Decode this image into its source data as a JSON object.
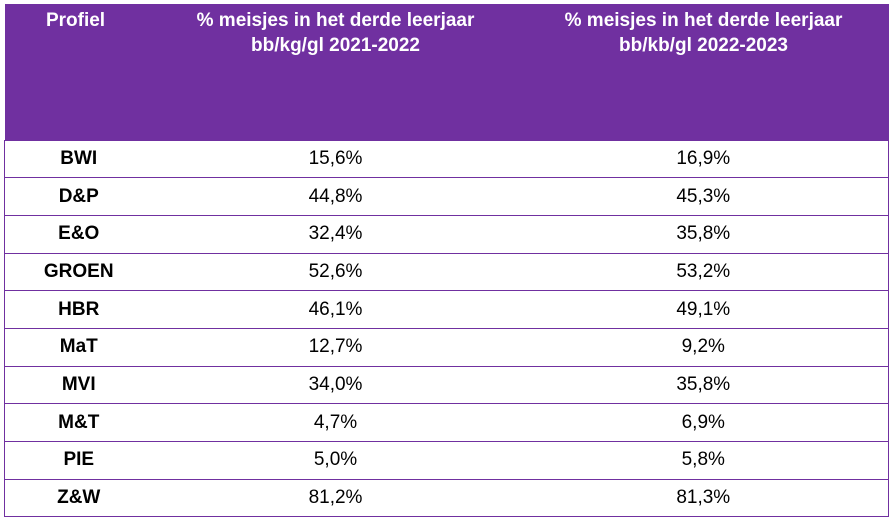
{
  "table": {
    "headers": [
      {
        "lines": [
          "Profiel"
        ]
      },
      {
        "lines": [
          "% meisjes in het derde leerjaar",
          "bb/kg/gl  2021-2022"
        ]
      },
      {
        "lines": [
          "% meisjes in het derde leerjaar",
          "bb/kb/gl 2022-2023"
        ]
      }
    ],
    "rows": [
      {
        "profiel": "BWI",
        "y2021": "15,6%",
        "y2022": "16,9%"
      },
      {
        "profiel": "D&P",
        "y2021": "44,8%",
        "y2022": "45,3%"
      },
      {
        "profiel": "E&O",
        "y2021": "32,4%",
        "y2022": "35,8%"
      },
      {
        "profiel": "GROEN",
        "y2021": "52,6%",
        "y2022": "53,2%"
      },
      {
        "profiel": "HBR",
        "y2021": "46,1%",
        "y2022": "49,1%"
      },
      {
        "profiel": "MaT",
        "y2021": "12,7%",
        "y2022": "9,2%"
      },
      {
        "profiel": "MVI",
        "y2021": "34,0%",
        "y2022": "35,8%"
      },
      {
        "profiel": "M&T",
        "y2021": "4,7%",
        "y2022": "6,9%"
      },
      {
        "profiel": "PIE",
        "y2021": "5,0%",
        "y2022": "5,8%"
      },
      {
        "profiel": "Z&W",
        "y2021": "81,2%",
        "y2022": "81,3%"
      }
    ]
  },
  "colors": {
    "header_bg": "#7030a0",
    "header_text": "#ffffff",
    "border": "#7030a0"
  }
}
